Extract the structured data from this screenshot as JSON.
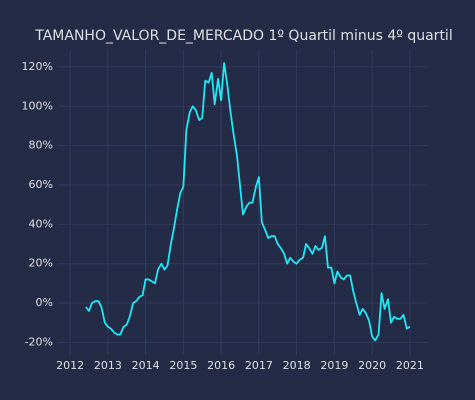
{
  "chart_data": {
    "type": "line",
    "title": "TAMANHO_VALOR_DE_MERCADO 1º Quartil minus 4º quartil",
    "x": [
      2012.42,
      2012.5,
      2012.58,
      2012.67,
      2012.75,
      2012.83,
      2012.92,
      2013.0,
      2013.08,
      2013.17,
      2013.25,
      2013.33,
      2013.42,
      2013.5,
      2013.58,
      2013.67,
      2013.75,
      2013.83,
      2013.92,
      2014.0,
      2014.08,
      2014.17,
      2014.25,
      2014.33,
      2014.42,
      2014.5,
      2014.58,
      2014.67,
      2014.75,
      2014.83,
      2014.92,
      2015.0,
      2015.08,
      2015.17,
      2015.25,
      2015.33,
      2015.42,
      2015.5,
      2015.58,
      2015.67,
      2015.75,
      2015.83,
      2015.92,
      2016.0,
      2016.08,
      2016.17,
      2016.25,
      2016.33,
      2016.42,
      2016.5,
      2016.58,
      2016.67,
      2016.75,
      2016.83,
      2016.92,
      2017.0,
      2017.08,
      2017.17,
      2017.25,
      2017.33,
      2017.42,
      2017.5,
      2017.58,
      2017.67,
      2017.75,
      2017.83,
      2017.92,
      2018.0,
      2018.08,
      2018.17,
      2018.25,
      2018.33,
      2018.42,
      2018.5,
      2018.58,
      2018.67,
      2018.75,
      2018.83,
      2018.92,
      2019.0,
      2019.08,
      2019.17,
      2019.25,
      2019.33,
      2019.42,
      2019.5,
      2019.58,
      2019.67,
      2019.75,
      2019.83,
      2019.92,
      2020.0,
      2020.08,
      2020.17,
      2020.25,
      2020.33,
      2020.42,
      2020.5,
      2020.58,
      2020.67,
      2020.75,
      2020.83,
      2020.92,
      2021.0
    ],
    "series": [
      {
        "color": "#1fe9f5",
        "values": [
          -2,
          -4,
          0,
          1,
          1,
          -2,
          -10,
          -12,
          -13,
          -15,
          -16,
          -16,
          -12,
          -11,
          -7,
          0,
          1,
          3,
          4,
          12,
          12,
          11,
          10,
          17,
          20,
          17,
          19,
          30,
          38,
          47,
          56,
          59,
          88,
          97,
          100,
          98,
          93,
          94,
          113,
          112,
          117,
          101,
          114,
          103,
          122,
          110,
          97,
          86,
          75,
          60,
          45,
          49,
          51,
          51,
          59,
          64,
          41,
          37,
          33,
          34,
          34,
          30,
          28,
          25,
          20,
          23,
          21,
          20,
          22,
          23,
          30,
          28,
          25,
          29,
          27,
          28,
          34,
          18,
          18,
          10,
          16,
          13,
          12,
          14,
          14,
          6,
          0,
          -6,
          -3,
          -5,
          -9,
          -17,
          -19,
          -16,
          5,
          -3,
          2,
          -10,
          -7,
          -8,
          -8,
          -6,
          -13,
          -12
        ]
      }
    ],
    "xlim": [
      2011.68,
      2021.48
    ],
    "xticks": [
      2012,
      2013,
      2014,
      2015,
      2016,
      2017,
      2018,
      2019,
      2020,
      2021
    ],
    "ylim": [
      -26.4,
      128.6
    ],
    "yticks": [
      {
        "value": -20,
        "label": "-20%"
      },
      {
        "value": 0,
        "label": "0%"
      },
      {
        "value": 20,
        "label": "20%"
      },
      {
        "value": 40,
        "label": "40%"
      },
      {
        "value": 60,
        "label": "60%"
      },
      {
        "value": 80,
        "label": "80%"
      },
      {
        "value": 100,
        "label": "100%"
      },
      {
        "value": 120,
        "label": "120%"
      }
    ],
    "grid": true
  }
}
